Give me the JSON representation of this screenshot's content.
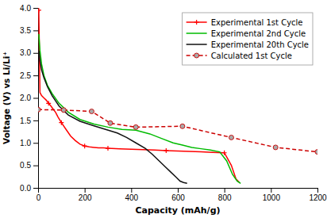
{
  "chart_data": {
    "type": "line",
    "xlabel": "Capacity (mAh/g)",
    "ylabel": "Voltage (V) vs Li/Li⁺",
    "xlim": [
      0,
      1200
    ],
    "ylim": [
      0.0,
      4.0
    ],
    "xticks": [
      0,
      200,
      400,
      600,
      800,
      1000,
      1200
    ],
    "yticks": [
      {
        "value": 0.0,
        "label": "0.0"
      },
      0.5,
      {
        "value": 1.0,
        "label": "1.0"
      },
      1.5,
      {
        "value": 2.0,
        "label": "2.0"
      },
      2.5,
      {
        "value": 3.0,
        "label": "3.0"
      },
      3.5,
      {
        "value": 4.0,
        "label": "4.0"
      }
    ],
    "grid": false,
    "legend": "upper right",
    "series": [
      {
        "name": "Experimental 1st Cycle",
        "color": "#ff0000",
        "line_style": "solid",
        "marker": "plus",
        "x": [
          3,
          8,
          15,
          25,
          35,
          45,
          55,
          65,
          75,
          85,
          100,
          120,
          140,
          160,
          180,
          200,
          220,
          240,
          260,
          280,
          300,
          350,
          400,
          450,
          500,
          550,
          600,
          650,
          700,
          750,
          800,
          830,
          850,
          865
        ],
        "values": [
          3.95,
          2.12,
          2.05,
          2.0,
          1.95,
          1.88,
          1.82,
          1.75,
          1.68,
          1.58,
          1.45,
          1.3,
          1.15,
          1.05,
          0.97,
          0.93,
          0.91,
          0.9,
          0.89,
          0.89,
          0.88,
          0.87,
          0.86,
          0.85,
          0.84,
          0.83,
          0.82,
          0.81,
          0.8,
          0.79,
          0.78,
          0.5,
          0.2,
          0.12
        ]
      },
      {
        "name": "Experimental 2nd Cycle",
        "color": "#00bb00",
        "line_style": "solid",
        "x": [
          3,
          8,
          15,
          25,
          40,
          60,
          90,
          130,
          180,
          240,
          300,
          360,
          420,
          480,
          530,
          580,
          620,
          660,
          700,
          740,
          780,
          810,
          835,
          855,
          870
        ],
        "values": [
          3.42,
          3.05,
          2.75,
          2.5,
          2.28,
          2.1,
          1.88,
          1.68,
          1.52,
          1.42,
          1.35,
          1.3,
          1.28,
          1.2,
          1.1,
          1.0,
          0.95,
          0.9,
          0.87,
          0.84,
          0.8,
          0.6,
          0.3,
          0.15,
          0.1
        ]
      },
      {
        "name": "Experimental 20th Cycle",
        "color": "#111111",
        "line_style": "solid",
        "x": [
          3,
          8,
          15,
          25,
          40,
          60,
          90,
          130,
          180,
          240,
          290,
          340,
          380,
          420,
          460,
          490,
          520,
          550,
          570,
          590,
          610,
          625,
          640
        ],
        "values": [
          3.05,
          2.82,
          2.62,
          2.45,
          2.25,
          2.05,
          1.82,
          1.62,
          1.48,
          1.38,
          1.3,
          1.22,
          1.12,
          1.0,
          0.88,
          0.75,
          0.6,
          0.45,
          0.35,
          0.25,
          0.15,
          0.12,
          0.1
        ]
      },
      {
        "name": "Calculated 1st Cycle",
        "color": "#cc0000",
        "line_style": "dashed",
        "marker": "circle",
        "x": [
          0,
          110,
          230,
          310,
          420,
          620,
          830,
          1020,
          1200
        ],
        "values": [
          1.74,
          1.73,
          1.7,
          1.44,
          1.35,
          1.37,
          1.12,
          0.9,
          0.8
        ]
      }
    ]
  }
}
